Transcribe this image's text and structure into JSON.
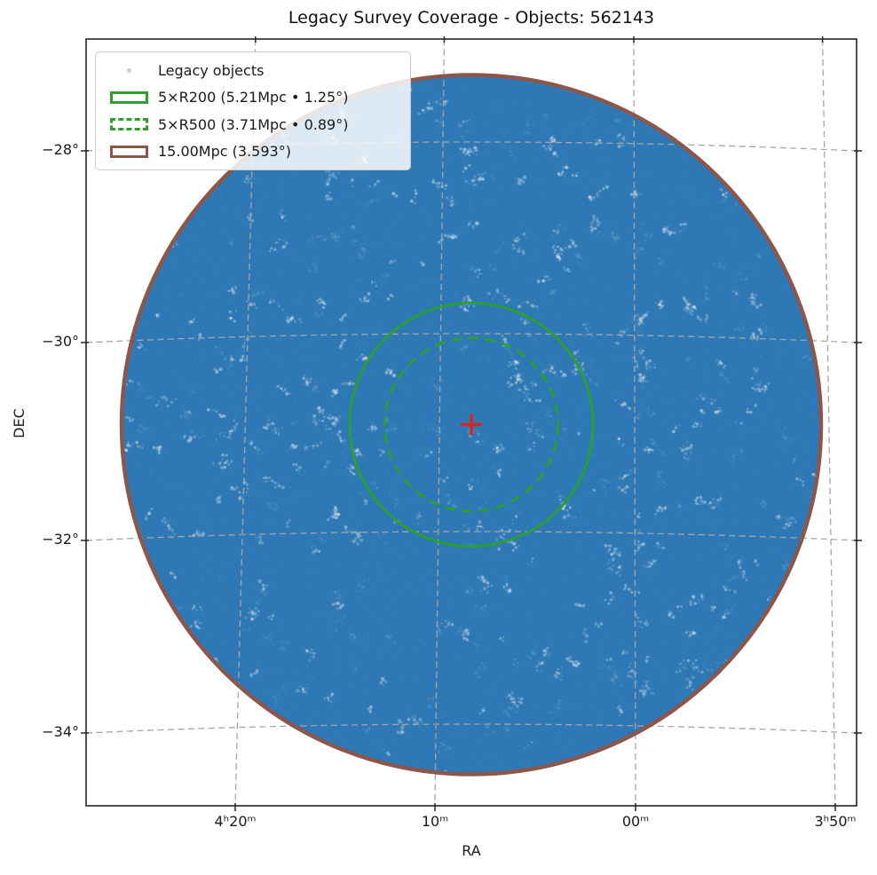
{
  "chart_data": {
    "type": "scatter",
    "title": "Legacy Survey Coverage - Objects: 562143",
    "xlabel": "RA",
    "ylabel": "DEC",
    "n_objects": 562143,
    "x_tick_labels": [
      "4ʰ20ᵐ",
      "10ᵐ",
      "00ᵐ",
      "3ʰ50ᵐ"
    ],
    "y_tick_labels": [
      "−28°",
      "−30°",
      "−32°",
      "−34°"
    ],
    "grid": {
      "visible": true,
      "style": "dashed",
      "color": "#a6a6a6"
    },
    "scatter": {
      "label": "Legacy objects",
      "base_color": "#2e79b5",
      "marker_color": "#c9ced6"
    },
    "legend": {
      "position": "upper-left",
      "items": [
        {
          "label": "Legacy objects",
          "marker": "dot",
          "color": "#c9ced6"
        },
        {
          "label": "5×R200 (5.21Mpc • 1.25°)",
          "marker": "rect-solid",
          "color": "#2ca02c",
          "radius_mpc": 5.21,
          "radius_deg": 1.25
        },
        {
          "label": "5×R500 (3.71Mpc • 0.89°)",
          "marker": "rect-dashed",
          "color": "#2ca02c",
          "radius_mpc": 3.71,
          "radius_deg": 0.89
        },
        {
          "label": "15.00Mpc (3.593°)",
          "marker": "rect-solid",
          "color": "#8c564b",
          "radius_mpc": 15.0,
          "radius_deg": 3.593
        }
      ]
    },
    "overlays": [
      {
        "name": "coverage-circle-15mpc",
        "shape": "circle",
        "radius_deg": 3.593,
        "color": "#8c564b",
        "line": "solid",
        "line_width": 4.5
      },
      {
        "name": "r200-circle",
        "shape": "circle",
        "radius_deg": 1.25,
        "color": "#2ca02c",
        "line": "solid",
        "line_width": 2.8
      },
      {
        "name": "r500-circle",
        "shape": "circle",
        "radius_deg": 0.89,
        "color": "#2ca02c",
        "line": "dashed",
        "line_width": 2.8
      },
      {
        "name": "cluster-center-marker",
        "shape": "plus",
        "color": "#d62728"
      }
    ]
  }
}
